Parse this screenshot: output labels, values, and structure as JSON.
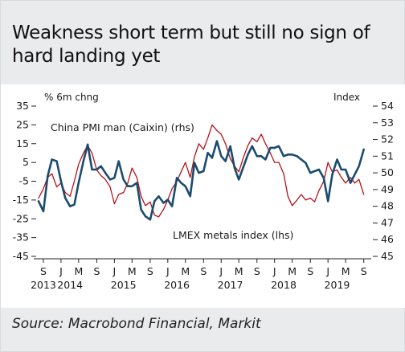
{
  "title": "Weakness short term but still no sign of hard landing yet",
  "source": "Source: Macrobond Financial, Markit",
  "chart_data": {
    "type": "line",
    "left_axis_label": "% 6m chng",
    "right_axis_label": "Index",
    "y_left_ticks": [
      35,
      25,
      15,
      5,
      -5,
      -15,
      -25,
      -35,
      -45
    ],
    "y_left_lim": [
      -45,
      35
    ],
    "y_right_ticks": [
      54,
      53,
      52,
      51,
      50,
      49,
      48,
      47,
      46,
      45
    ],
    "y_right_lim": [
      45,
      54
    ],
    "x_lim": [
      2013.58,
      2019.75
    ],
    "x_ticks": [
      {
        "label": "S",
        "x": 2013.67
      },
      {
        "label": "J",
        "x": 2014.0
      },
      {
        "label": "M",
        "x": 2014.33
      },
      {
        "label": "S",
        "x": 2014.67
      },
      {
        "label": "J",
        "x": 2015.0
      },
      {
        "label": "M",
        "x": 2015.33
      },
      {
        "label": "S",
        "x": 2015.67
      },
      {
        "label": "J",
        "x": 2016.0
      },
      {
        "label": "M",
        "x": 2016.33
      },
      {
        "label": "S",
        "x": 2016.67
      },
      {
        "label": "J",
        "x": 2017.0
      },
      {
        "label": "M",
        "x": 2017.33
      },
      {
        "label": "S",
        "x": 2017.67
      },
      {
        "label": "J",
        "x": 2018.0
      },
      {
        "label": "M",
        "x": 2018.33
      },
      {
        "label": "S",
        "x": 2018.67
      },
      {
        "label": "J",
        "x": 2019.0
      },
      {
        "label": "M",
        "x": 2019.33
      },
      {
        "label": "S",
        "x": 2019.67
      }
    ],
    "year_labels": [
      {
        "label": "2013",
        "x": 2013.67
      },
      {
        "label": "2014",
        "x": 2014.17
      },
      {
        "label": "2015",
        "x": 2015.17
      },
      {
        "label": "2016",
        "x": 2016.17
      },
      {
        "label": "2017",
        "x": 2017.17
      },
      {
        "label": "2018",
        "x": 2018.17
      },
      {
        "label": "2019",
        "x": 2019.17
      }
    ],
    "grid": false,
    "series": [
      {
        "name": "China PMI man (Caixin) (rhs)",
        "axis": "right",
        "color": "#1b4b6e",
        "x": [
          2013.58,
          2013.67,
          2013.75,
          2013.83,
          2013.92,
          2014.0,
          2014.08,
          2014.17,
          2014.25,
          2014.33,
          2014.42,
          2014.5,
          2014.58,
          2014.67,
          2014.75,
          2014.83,
          2014.92,
          2015.0,
          2015.08,
          2015.17,
          2015.25,
          2015.33,
          2015.42,
          2015.5,
          2015.58,
          2015.67,
          2015.75,
          2015.83,
          2015.92,
          2016.0,
          2016.08,
          2016.17,
          2016.25,
          2016.33,
          2016.42,
          2016.5,
          2016.58,
          2016.67,
          2016.75,
          2016.83,
          2016.92,
          2017.0,
          2017.08,
          2017.17,
          2017.25,
          2017.33,
          2017.42,
          2017.5,
          2017.58,
          2017.67,
          2017.75,
          2017.83,
          2017.92,
          2018.0,
          2018.08,
          2018.17,
          2018.25,
          2018.33,
          2018.42,
          2018.5,
          2018.58,
          2018.67,
          2018.75,
          2018.83,
          2018.92,
          2019.0,
          2019.08,
          2019.17,
          2019.25,
          2019.33,
          2019.42,
          2019.5,
          2019.58,
          2019.67
        ],
        "values": [
          48.3,
          47.7,
          49.8,
          50.8,
          50.7,
          49.5,
          48.5,
          48.0,
          48.1,
          49.4,
          50.7,
          51.7,
          50.2,
          50.2,
          50.4,
          50.0,
          49.6,
          49.7,
          50.7,
          49.6,
          49.2,
          49.2,
          49.4,
          47.8,
          47.4,
          47.2,
          48.3,
          48.6,
          48.2,
          48.4,
          48.0,
          49.7,
          49.4,
          49.2,
          48.6,
          50.6,
          50.0,
          50.1,
          51.2,
          50.9,
          51.9,
          51.0,
          50.7,
          51.6,
          50.3,
          49.6,
          50.4,
          51.1,
          51.6,
          51.0,
          51.0,
          50.8,
          51.5,
          51.5,
          51.6,
          51.0,
          51.1,
          51.1,
          51.0,
          50.8,
          50.6,
          50.0,
          50.1,
          50.2,
          49.7,
          48.3,
          49.9,
          50.8,
          50.2,
          50.2,
          49.4,
          49.9,
          50.4,
          51.4
        ]
      },
      {
        "name": "LMEX metals index (lhs)",
        "axis": "left",
        "color": "#b5121b",
        "x": [
          2013.58,
          2013.67,
          2013.75,
          2013.83,
          2013.92,
          2014.0,
          2014.08,
          2014.17,
          2014.25,
          2014.33,
          2014.42,
          2014.5,
          2014.58,
          2014.67,
          2014.75,
          2014.83,
          2014.92,
          2015.0,
          2015.08,
          2015.17,
          2015.25,
          2015.33,
          2015.42,
          2015.5,
          2015.58,
          2015.67,
          2015.75,
          2015.83,
          2015.92,
          2016.0,
          2016.08,
          2016.17,
          2016.25,
          2016.33,
          2016.42,
          2016.5,
          2016.58,
          2016.67,
          2016.75,
          2016.83,
          2016.92,
          2017.0,
          2017.08,
          2017.17,
          2017.25,
          2017.33,
          2017.42,
          2017.5,
          2017.58,
          2017.67,
          2017.75,
          2017.83,
          2017.92,
          2018.0,
          2018.08,
          2018.17,
          2018.25,
          2018.33,
          2018.42,
          2018.5,
          2018.58,
          2018.67,
          2018.75,
          2018.83,
          2018.92,
          2019.0,
          2019.08,
          2019.17,
          2019.25,
          2019.33,
          2019.42,
          2019.5,
          2019.58,
          2019.67
        ],
        "values": [
          -14,
          -9,
          -3,
          -1,
          -8,
          -6,
          -11,
          -13,
          -5,
          4,
          10,
          14,
          10,
          1,
          -2,
          -4,
          -8,
          -17,
          -12,
          -11,
          -6,
          2,
          -3,
          -13,
          -18,
          -16,
          -23,
          -24,
          -20,
          -15,
          -9,
          -5,
          0,
          5,
          -3,
          8,
          15,
          12,
          18,
          25,
          22,
          20,
          15,
          7,
          3,
          0,
          8,
          14,
          18,
          16,
          20,
          15,
          10,
          5,
          5,
          -1,
          -13,
          -18,
          -15,
          -12,
          -15,
          -14,
          -16,
          -10,
          -5,
          5,
          0,
          1,
          -3,
          -6,
          -3,
          -6,
          -4,
          -12
        ]
      }
    ]
  }
}
